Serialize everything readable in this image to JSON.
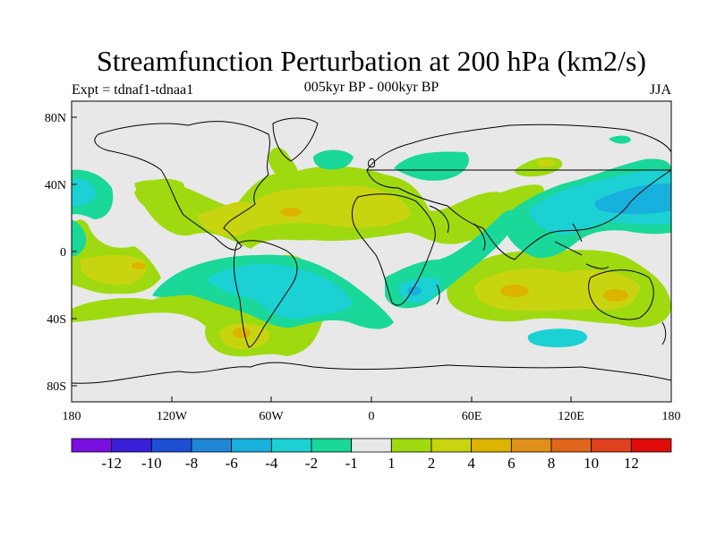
{
  "title": "Streamfunction Perturbation at 200 hPa (km2/s)",
  "subtitle": "005kyr BP - 000kyr BP",
  "left_label": "Expt = tdnaf1-tdnaa1",
  "right_label": "JJA",
  "lat_ticks": [
    "80N",
    "40N",
    "0",
    "40S",
    "80S"
  ],
  "lon_ticks": [
    "180",
    "120W",
    "60W",
    "0",
    "60E",
    "120E",
    "180"
  ],
  "colorbar": {
    "colors": [
      "#7a10e0",
      "#3a1fd8",
      "#1c4fd4",
      "#1f86d8",
      "#18b0dc",
      "#1bd1d4",
      "#1ad79a",
      "#e8e8e8",
      "#9fda10",
      "#c9d410",
      "#dcb400",
      "#e0901a",
      "#e0661a",
      "#e0401c",
      "#e00c0c"
    ],
    "labels": [
      "-12",
      "-10",
      "-8",
      "-6",
      "-4",
      "-2",
      "-1",
      "1",
      "2",
      "4",
      "6",
      "8",
      "10",
      "12"
    ]
  },
  "colors": {
    "background": "#e8e8e8",
    "pos1": "#9fda10",
    "pos2": "#c9d410",
    "pos3": "#dcb400",
    "pos4": "#e0901a",
    "neg1": "#1ad79a",
    "neg2": "#1bd1d4",
    "neg3": "#18b0dc"
  }
}
